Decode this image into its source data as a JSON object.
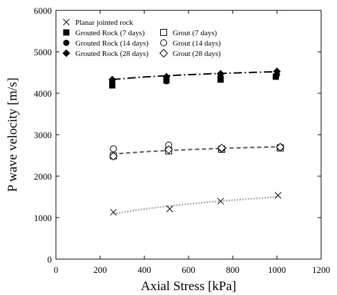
{
  "chart_data": {
    "type": "scatter",
    "xlabel": "Axial Stress [kPa]",
    "ylabel": "P wave velocity [m/s]",
    "xlim": [
      0,
      1200
    ],
    "ylim": [
      0,
      6000
    ],
    "xticks": [
      0,
      200,
      400,
      600,
      800,
      1000,
      1200
    ],
    "yticks": [
      0,
      1000,
      2000,
      3000,
      4000,
      5000,
      6000
    ],
    "grid": false,
    "legend_position": "top-left",
    "series": [
      {
        "name": "Planar jointed rock",
        "marker": "x",
        "x": [
          260,
          515,
          745,
          1005
        ],
        "y": [
          1130,
          1210,
          1395,
          1535
        ]
      },
      {
        "name": "Grouted Rock (7 days)",
        "marker": "square-filled",
        "x": [
          255,
          500,
          745,
          995
        ],
        "y": [
          4190,
          4310,
          4330,
          4400
        ]
      },
      {
        "name": "Grout (7 days)",
        "marker": "square-open",
        "x": [
          260,
          510,
          750,
          1015
        ],
        "y": [
          2490,
          2610,
          2650,
          2680
        ]
      },
      {
        "name": "Grouted Rock (14 days)",
        "marker": "circle-filled",
        "x": [
          255,
          500,
          745,
          1000
        ],
        "y": [
          4290,
          4290,
          4400,
          4450
        ]
      },
      {
        "name": "Grout  (14 days)",
        "marker": "circle-open",
        "x": [
          260,
          510,
          750,
          1015
        ],
        "y": [
          2660,
          2750,
          2670,
          2700
        ]
      },
      {
        "name": "Grouted Rock (28 days)",
        "marker": "diamond-filled",
        "x": [
          255,
          500,
          745,
          1000
        ],
        "y": [
          4330,
          4400,
          4470,
          4530
        ]
      },
      {
        "name": "Grout (28 days)",
        "marker": "diamond-open",
        "x": [
          260,
          510,
          750,
          1015
        ],
        "y": [
          2480,
          2640,
          2680,
          2700
        ]
      }
    ],
    "trend_lines": [
      {
        "style": "dash-dot",
        "color": "#000000",
        "x": [
          255,
          1000
        ],
        "y": [
          4330,
          4520
        ]
      },
      {
        "style": "dashed",
        "color": "#555555",
        "x": [
          255,
          1015
        ],
        "y": [
          2530,
          2710
        ]
      },
      {
        "style": "dotted",
        "color": "#aaaaaa",
        "x": [
          260,
          1005
        ],
        "y": [
          1090,
          1500
        ]
      }
    ]
  }
}
